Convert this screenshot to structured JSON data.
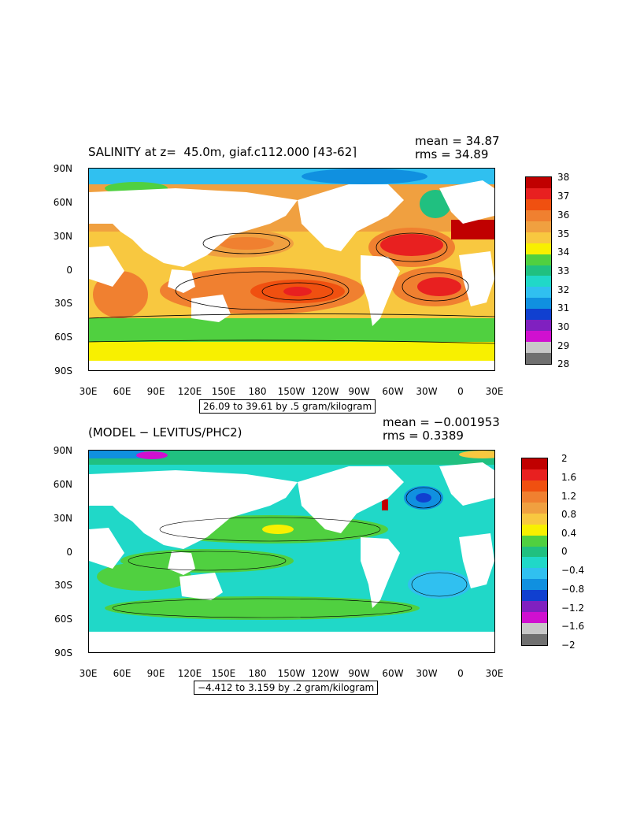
{
  "panel1": {
    "title": "SALINITY at z=  45.0m, giaf.c112.000 ⌈43-62⌉",
    "mean": "mean = 34.87",
    "rms": "rms = 34.89",
    "range": "26.09 to 39.61 by .5 gram/kilogram",
    "colorbar_labels": [
      "38",
      "37",
      "36",
      "35",
      "34",
      "33",
      "32",
      "31",
      "30",
      "29",
      "28"
    ],
    "colors": [
      "#c00000",
      "#e82020",
      "#f05010",
      "#f08030",
      "#f0a040",
      "#f8c840",
      "#f8f000",
      "#50d040",
      "#20c080",
      "#20d8c8",
      "#30c0f0",
      "#1090e0",
      "#1040d0",
      "#8020c0",
      "#d010d0",
      "#c8c8c8",
      "#707070"
    ]
  },
  "panel2": {
    "title": "(MODEL − LEVITUS/PHC2)",
    "mean": "mean = −0.001953",
    "rms": "rms = 0.3389",
    "range": "−4.412 to 3.159 by .2 gram/kilogram",
    "colorbar_labels": [
      "2",
      "1.6",
      "1.2",
      "0.8",
      "0.4",
      "0",
      "−0.4",
      "−0.8",
      "−1.2",
      "−1.6",
      "−2"
    ]
  },
  "y_ticks": [
    "90N",
    "60N",
    "30N",
    "0",
    "30S",
    "60S",
    "90S"
  ],
  "x_ticks": [
    "30E",
    "60E",
    "90E",
    "120E",
    "150E",
    "180",
    "150W",
    "120W",
    "90W",
    "60W",
    "30W",
    "0",
    "30E"
  ]
}
